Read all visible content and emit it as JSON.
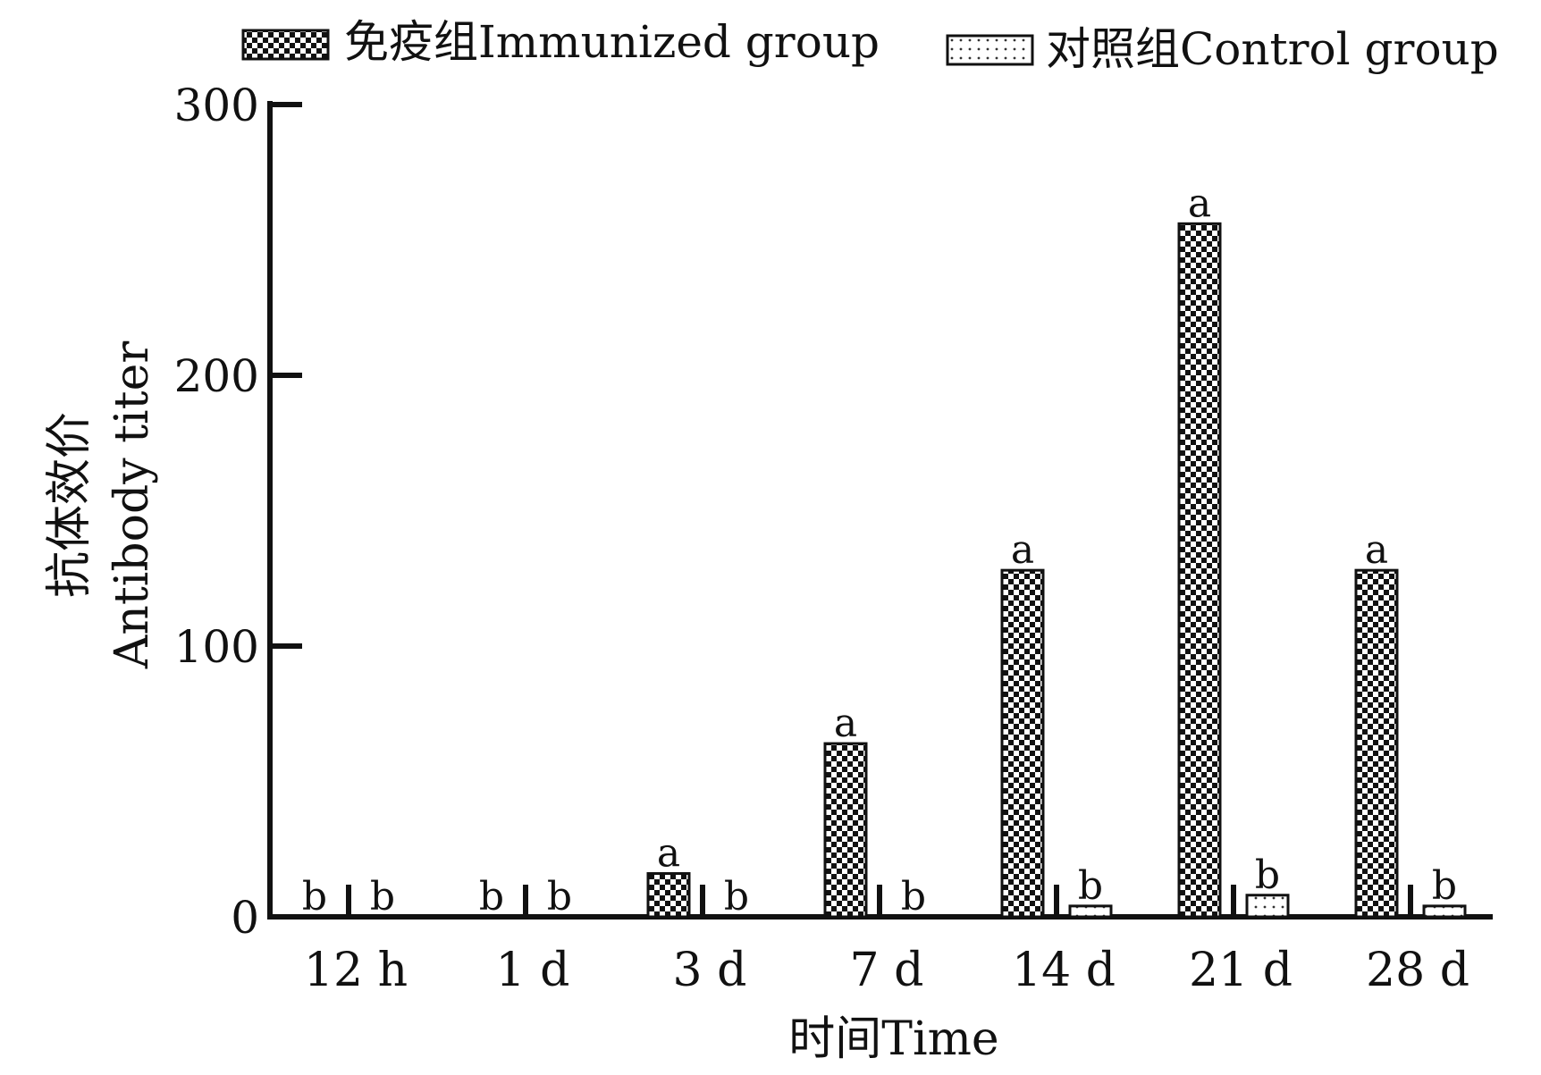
{
  "chart_data": {
    "type": "bar",
    "title": "",
    "xlabel": "时间Time",
    "ylabel_lines": [
      "抗体效价",
      "Antibody titer"
    ],
    "categories": [
      "12 h",
      "1 d",
      "3 d",
      "7 d",
      "14 d",
      "21 d",
      "28 d"
    ],
    "series": [
      {
        "name": "免疫组Immunized group",
        "values": [
          0,
          0,
          16,
          64,
          128,
          256,
          128
        ],
        "labels": [
          "b",
          "b",
          "a",
          "a",
          "a",
          "a",
          "a"
        ],
        "pattern": "checker",
        "color": "#111111"
      },
      {
        "name": "对照组Control group",
        "values": [
          0,
          0,
          0,
          0,
          4,
          8,
          4
        ],
        "labels": [
          "b",
          "b",
          "b",
          "b",
          "b",
          "b",
          "b"
        ],
        "pattern": "dots",
        "color": "#111111"
      }
    ],
    "yticks": [
      0,
      100,
      200,
      300
    ],
    "ylim": [
      0,
      300
    ],
    "grid": false,
    "legend_position": "top"
  }
}
